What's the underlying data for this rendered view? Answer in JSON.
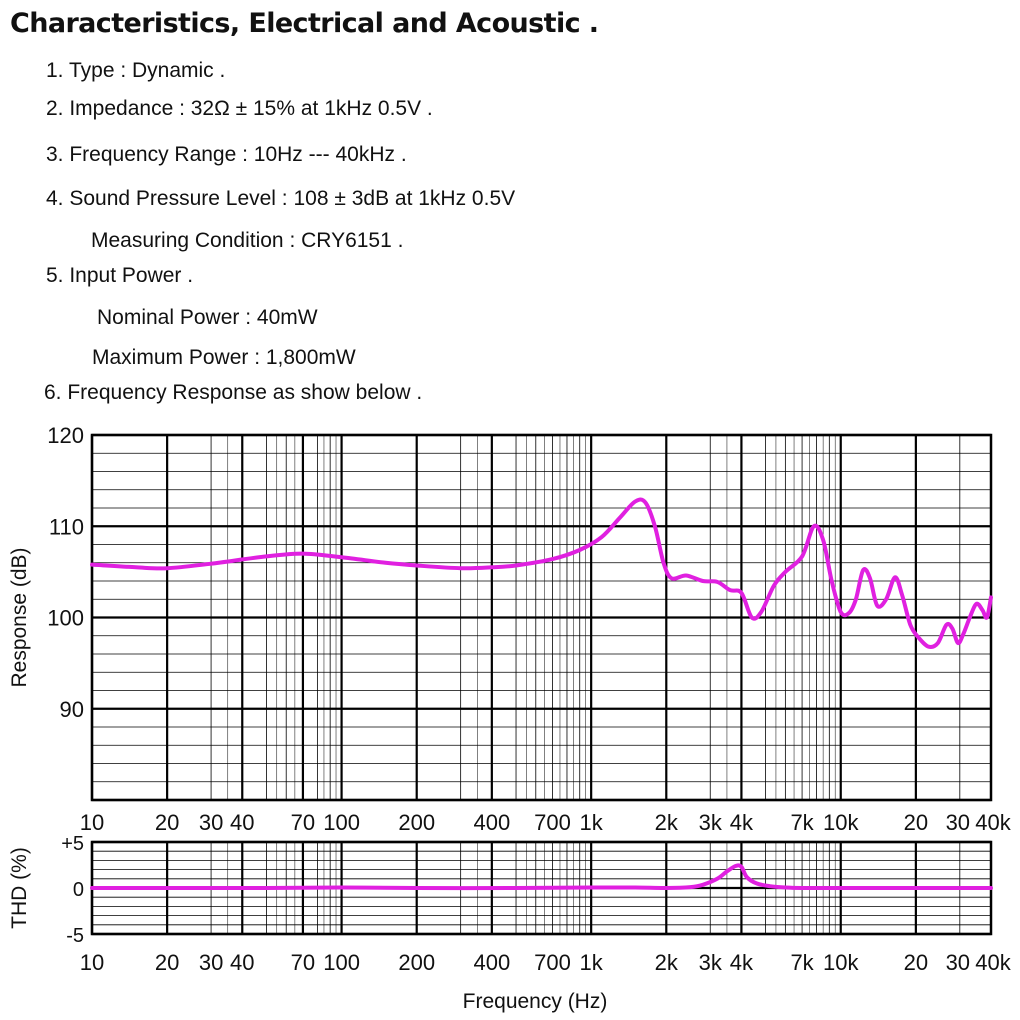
{
  "heading": "Characteristics, Electrical and Acoustic .",
  "specs": [
    "1. Type : Dynamic .",
    "2. Impedance : 32Ω ± 15% at 1kHz 0.5V .",
    "3. Frequency Range : 10Hz --- 40kHz .",
    "4. Sound Pressure Level :  108 ± 3dB at 1kHz 0.5V",
    "Measuring Condition : CRY6151 .",
    "5. Input Power .",
    "Nominal Power : 40mW",
    "Maximum Power : 1,800mW",
    "6. Frequency Response as show below ."
  ],
  "chart_data": [
    {
      "type": "line",
      "ylabel": "Response (dB)",
      "xscale": "log",
      "xlim": [
        10,
        40000
      ],
      "ylim": [
        80,
        120
      ],
      "grid": true,
      "line_color": "#e020e0",
      "x_tick_labels": [
        "10",
        "20",
        "30",
        "40",
        "70",
        "100",
        "200",
        "400",
        "700",
        "1k",
        "2k",
        "3k",
        "4k",
        "7k",
        "10k",
        "20",
        "30",
        "40k"
      ],
      "y_tick_labels": [
        "120",
        "110",
        "100",
        "90"
      ],
      "series": [
        {
          "x": [
            10,
            15,
            20,
            30,
            50,
            70,
            100,
            150,
            200,
            300,
            400,
            500,
            700,
            900,
            1100,
            1300,
            1500,
            1650,
            1800,
            1950,
            2100,
            2400,
            2800,
            3200,
            3600,
            4000,
            4400,
            4800,
            5400,
            6000,
            7000,
            7800,
            8500,
            9200,
            10000,
            10800,
            11500,
            12300,
            13100,
            14000,
            15200,
            16500,
            17600,
            19000,
            20500,
            22500,
            24500,
            26500,
            28000,
            29500,
            31000,
            33000,
            35000,
            37000,
            38500,
            40000
          ],
          "y": [
            105.8,
            105.5,
            105.4,
            105.9,
            106.7,
            107.0,
            106.6,
            106.0,
            105.7,
            105.4,
            105.5,
            105.7,
            106.4,
            107.4,
            108.8,
            110.9,
            112.7,
            112.6,
            110.0,
            106.0,
            104.3,
            104.6,
            104.0,
            103.9,
            103.0,
            102.7,
            100.0,
            100.6,
            103.5,
            105.0,
            106.7,
            110.0,
            108.5,
            104.0,
            100.6,
            100.5,
            102.0,
            105.2,
            104.3,
            101.3,
            102.0,
            104.4,
            102.5,
            99.2,
            97.8,
            96.8,
            97.2,
            99.2,
            98.8,
            97.2,
            98.2,
            100.1,
            101.5,
            100.8,
            100.0,
            102.2
          ]
        }
      ]
    },
    {
      "type": "line",
      "ylabel": "THD (%)",
      "xlabel": "Frequency (Hz)",
      "xscale": "log",
      "xlim": [
        10,
        40000
      ],
      "ylim": [
        -5,
        5
      ],
      "grid": true,
      "line_color": "#e020e0",
      "x_tick_labels": [
        "10",
        "20",
        "30",
        "40",
        "70",
        "100",
        "200",
        "400",
        "700",
        "1k",
        "2k",
        "3k",
        "4k",
        "7k",
        "10k",
        "20",
        "30",
        "40k"
      ],
      "y_tick_labels": [
        "+5",
        "0",
        "-5"
      ],
      "series": [
        {
          "x": [
            10,
            50,
            100,
            200,
            500,
            1000,
            1500,
            2000,
            2500,
            2800,
            3200,
            3500,
            3800,
            4000,
            4200,
            4600,
            5200,
            6000,
            7000,
            10000,
            20000,
            40000
          ],
          "y": [
            0.0,
            0.0,
            0.05,
            0.0,
            0.0,
            0.05,
            0.05,
            0.0,
            0.1,
            0.35,
            1.0,
            1.8,
            2.4,
            2.3,
            1.2,
            0.5,
            0.2,
            0.05,
            0.0,
            0.0,
            0.0,
            0.0
          ]
        }
      ]
    }
  ]
}
